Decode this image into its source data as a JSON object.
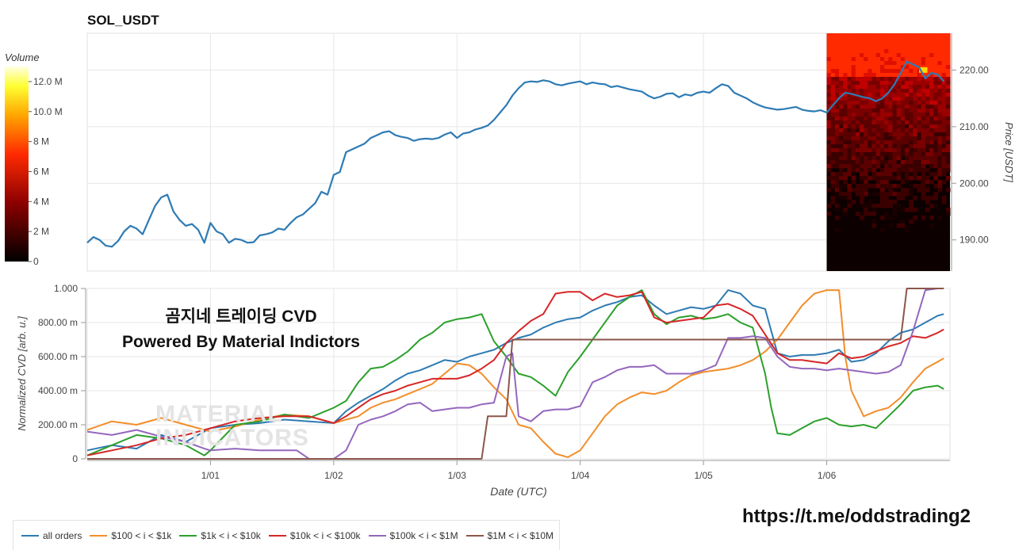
{
  "header": {
    "title": "SOL_USDT"
  },
  "overlay": {
    "line1": "곰지네 트레이딩 CVD",
    "line2": "Powered By Material Indictors",
    "watermark_line1": "MATERIAL",
    "watermark_line2": "INDICATORS"
  },
  "footer": {
    "link": "https://t.me/oddstrading2"
  },
  "colors": {
    "all_orders": "#2e7bb4",
    "s100_1k": "#f28e2b",
    "s1k_10k": "#2ca02c",
    "s10k_100k": "#d62728",
    "s100k_1m": "#9467bd",
    "s1m_10m": "#8c564b"
  },
  "chart_data": [
    {
      "type": "line",
      "title": "SOL_USDT",
      "ylabel": "Price [USDT]",
      "ylim": [
        184.5,
        226.5
      ],
      "xlim": [
        0,
        7
      ],
      "ytick_values": [
        190,
        200,
        210,
        220
      ],
      "ytick_labels": [
        "190.00",
        "200.00",
        "210.00",
        "220.00"
      ],
      "xtick_values": [
        1,
        2,
        3,
        4,
        5,
        6
      ],
      "grid": true,
      "heatmap_region": {
        "x_start": 6.0,
        "x_end": 7.0
      },
      "colorbar": {
        "label": "Volume",
        "ticks": [
          "0",
          "2 M",
          "4 M",
          "6 M",
          "8 M",
          "10.0 M",
          "12.0 M"
        ],
        "range": [
          0,
          13000000
        ]
      },
      "series": [
        {
          "key": "all_orders",
          "x": [
            0.0,
            0.05,
            0.1,
            0.15,
            0.2,
            0.25,
            0.3,
            0.35,
            0.4,
            0.45,
            0.5,
            0.55,
            0.6,
            0.65,
            0.7,
            0.75,
            0.8,
            0.85,
            0.9,
            0.95,
            1.0,
            1.05,
            1.1,
            1.15,
            1.2,
            1.25,
            1.3,
            1.35,
            1.4,
            1.45,
            1.5,
            1.55,
            1.6,
            1.65,
            1.7,
            1.75,
            1.8,
            1.85,
            1.9,
            1.95,
            2.0,
            2.05,
            2.1,
            2.15,
            2.2,
            2.25,
            2.3,
            2.35,
            2.4,
            2.45,
            2.5,
            2.55,
            2.6,
            2.65,
            2.7,
            2.75,
            2.8,
            2.85,
            2.9,
            2.95,
            3.0,
            3.05,
            3.1,
            3.15,
            3.2,
            3.25,
            3.3,
            3.35,
            3.4,
            3.45,
            3.5,
            3.55,
            3.6,
            3.65,
            3.7,
            3.75,
            3.8,
            3.85,
            3.9,
            3.95,
            4.0,
            4.05,
            4.1,
            4.15,
            4.2,
            4.25,
            4.3,
            4.35,
            4.4,
            4.45,
            4.5,
            4.55,
            4.6,
            4.65,
            4.7,
            4.75,
            4.8,
            4.85,
            4.9,
            4.95,
            5.0,
            5.05,
            5.1,
            5.15,
            5.2,
            5.25,
            5.3,
            5.35,
            5.4,
            5.45,
            5.5,
            5.55,
            5.6,
            5.65,
            5.7,
            5.75,
            5.8,
            5.85,
            5.9,
            5.95,
            6.0,
            6.05,
            6.1,
            6.15,
            6.2,
            6.25,
            6.3,
            6.35,
            6.4,
            6.45,
            6.5,
            6.55,
            6.6,
            6.65,
            6.7,
            6.75,
            6.8,
            6.85,
            6.9,
            6.95
          ],
          "y": [
            189.5,
            190.5,
            190.0,
            189.0,
            188.8,
            189.8,
            191.5,
            192.5,
            192.0,
            191.0,
            193.5,
            196.0,
            197.5,
            198.0,
            195.0,
            193.5,
            192.5,
            192.8,
            191.8,
            189.5,
            193.0,
            191.5,
            191.0,
            189.5,
            190.2,
            190.0,
            189.5,
            189.6,
            190.8,
            191.0,
            191.3,
            192.0,
            191.8,
            193.0,
            194.0,
            194.5,
            195.5,
            196.5,
            198.5,
            198.0,
            201.5,
            202.0,
            205.5,
            206.0,
            206.5,
            207.0,
            208.0,
            208.5,
            209.0,
            209.2,
            208.5,
            208.2,
            208.0,
            207.5,
            207.8,
            207.9,
            207.8,
            208.0,
            208.6,
            209.0,
            208.0,
            208.8,
            209.0,
            209.5,
            209.8,
            210.2,
            211.2,
            212.5,
            213.8,
            215.5,
            216.8,
            217.8,
            218.0,
            217.9,
            218.2,
            218.0,
            217.5,
            217.3,
            217.6,
            217.8,
            218.0,
            217.5,
            217.8,
            217.6,
            217.5,
            217.0,
            217.2,
            216.9,
            216.6,
            216.4,
            216.2,
            215.5,
            215.0,
            215.3,
            215.8,
            215.9,
            215.2,
            215.7,
            215.5,
            216.0,
            216.2,
            216.0,
            216.8,
            217.5,
            217.2,
            216.0,
            215.5,
            215.0,
            214.3,
            213.8,
            213.4,
            213.2,
            213.0,
            213.1,
            213.3,
            213.5,
            213.0,
            212.8,
            212.7,
            212.9,
            212.5,
            213.8,
            215.0,
            216.0,
            215.8,
            215.5,
            215.2,
            215.0,
            214.5,
            215.0,
            216.0,
            217.5,
            219.5,
            221.5,
            221.0,
            220.5,
            218.5,
            219.5,
            219.2,
            218.0
          ]
        }
      ]
    },
    {
      "type": "line",
      "xlabel": "Date (UTC)",
      "ylabel": "Normalized CVD [arb. u.]",
      "ylim": [
        0,
        1
      ],
      "xlim": [
        0,
        7
      ],
      "ytick_values": [
        0,
        0.2,
        0.4,
        0.6,
        0.8,
        1.0
      ],
      "ytick_labels": [
        "0",
        "200.00 m",
        "400.00 m",
        "600.00 m",
        "800.00 m",
        "1.000"
      ],
      "xtick_values": [
        1,
        2,
        3,
        4,
        5,
        6
      ],
      "xtick_labels": [
        "1/01",
        "1/02",
        "1/03",
        "1/04",
        "1/05",
        "1/06"
      ],
      "grid": true,
      "legend_position": "bottom",
      "series": [
        {
          "key": "all_orders",
          "name": "all orders",
          "x": [
            0.0,
            0.2,
            0.4,
            0.6,
            0.8,
            1.0,
            1.2,
            1.4,
            1.6,
            1.8,
            2.0,
            2.1,
            2.2,
            2.3,
            2.4,
            2.5,
            2.6,
            2.7,
            2.8,
            2.9,
            3.0,
            3.1,
            3.2,
            3.3,
            3.4,
            3.5,
            3.6,
            3.7,
            3.8,
            3.9,
            4.0,
            4.1,
            4.2,
            4.3,
            4.4,
            4.5,
            4.6,
            4.7,
            4.8,
            4.9,
            5.0,
            5.1,
            5.2,
            5.3,
            5.4,
            5.5,
            5.6,
            5.7,
            5.8,
            5.9,
            6.0,
            6.1,
            6.2,
            6.3,
            6.4,
            6.5,
            6.6,
            6.7,
            6.8,
            6.9,
            6.95
          ],
          "y": [
            0.05,
            0.08,
            0.06,
            0.14,
            0.1,
            0.18,
            0.2,
            0.21,
            0.23,
            0.22,
            0.21,
            0.28,
            0.33,
            0.37,
            0.41,
            0.46,
            0.5,
            0.52,
            0.55,
            0.58,
            0.57,
            0.6,
            0.62,
            0.64,
            0.68,
            0.71,
            0.73,
            0.77,
            0.8,
            0.82,
            0.83,
            0.87,
            0.9,
            0.92,
            0.95,
            0.96,
            0.9,
            0.85,
            0.87,
            0.89,
            0.88,
            0.9,
            0.99,
            0.97,
            0.9,
            0.88,
            0.62,
            0.6,
            0.61,
            0.61,
            0.62,
            0.64,
            0.57,
            0.58,
            0.62,
            0.69,
            0.74,
            0.76,
            0.8,
            0.84,
            0.85
          ]
        },
        {
          "key": "s100_1k",
          "name": "$100 < i < $1k",
          "x": [
            0.0,
            0.2,
            0.4,
            0.6,
            0.8,
            1.0,
            1.2,
            1.4,
            1.6,
            1.8,
            2.0,
            2.1,
            2.2,
            2.3,
            2.4,
            2.5,
            2.6,
            2.7,
            2.8,
            2.9,
            3.0,
            3.1,
            3.2,
            3.3,
            3.4,
            3.5,
            3.6,
            3.7,
            3.8,
            3.9,
            4.0,
            4.1,
            4.2,
            4.3,
            4.4,
            4.5,
            4.6,
            4.7,
            4.8,
            4.9,
            5.0,
            5.1,
            5.2,
            5.3,
            5.4,
            5.5,
            5.6,
            5.7,
            5.8,
            5.9,
            6.0,
            6.1,
            6.15,
            6.2,
            6.3,
            6.4,
            6.5,
            6.6,
            6.7,
            6.8,
            6.9,
            6.95
          ],
          "y": [
            0.17,
            0.22,
            0.2,
            0.24,
            0.2,
            0.16,
            0.19,
            0.23,
            0.26,
            0.25,
            0.21,
            0.23,
            0.25,
            0.3,
            0.33,
            0.35,
            0.38,
            0.41,
            0.44,
            0.5,
            0.56,
            0.55,
            0.5,
            0.42,
            0.35,
            0.2,
            0.18,
            0.1,
            0.03,
            0.01,
            0.05,
            0.15,
            0.25,
            0.32,
            0.36,
            0.39,
            0.38,
            0.4,
            0.45,
            0.49,
            0.51,
            0.52,
            0.53,
            0.55,
            0.58,
            0.63,
            0.7,
            0.8,
            0.9,
            0.97,
            0.99,
            0.99,
            0.6,
            0.4,
            0.25,
            0.28,
            0.3,
            0.36,
            0.45,
            0.53,
            0.57,
            0.59
          ]
        },
        {
          "key": "s1k_10k",
          "name": "$1k < i < $10k",
          "x": [
            0.0,
            0.2,
            0.4,
            0.6,
            0.8,
            0.95,
            1.0,
            1.2,
            1.4,
            1.6,
            1.8,
            2.0,
            2.1,
            2.2,
            2.3,
            2.4,
            2.5,
            2.6,
            2.7,
            2.8,
            2.9,
            3.0,
            3.1,
            3.2,
            3.3,
            3.4,
            3.5,
            3.6,
            3.7,
            3.8,
            3.9,
            4.0,
            4.1,
            4.2,
            4.3,
            4.4,
            4.5,
            4.6,
            4.7,
            4.8,
            4.9,
            5.0,
            5.1,
            5.2,
            5.3,
            5.4,
            5.5,
            5.55,
            5.6,
            5.7,
            5.8,
            5.9,
            6.0,
            6.1,
            6.2,
            6.3,
            6.4,
            6.5,
            6.6,
            6.7,
            6.8,
            6.9,
            6.95
          ],
          "y": [
            0.02,
            0.08,
            0.14,
            0.12,
            0.08,
            0.02,
            0.05,
            0.2,
            0.22,
            0.26,
            0.24,
            0.3,
            0.34,
            0.45,
            0.53,
            0.54,
            0.58,
            0.63,
            0.7,
            0.74,
            0.8,
            0.82,
            0.83,
            0.85,
            0.69,
            0.6,
            0.5,
            0.48,
            0.43,
            0.37,
            0.51,
            0.6,
            0.7,
            0.8,
            0.9,
            0.95,
            0.99,
            0.85,
            0.79,
            0.83,
            0.84,
            0.82,
            0.83,
            0.85,
            0.8,
            0.77,
            0.5,
            0.3,
            0.15,
            0.14,
            0.18,
            0.22,
            0.24,
            0.2,
            0.19,
            0.2,
            0.18,
            0.25,
            0.32,
            0.4,
            0.42,
            0.43,
            0.41
          ]
        },
        {
          "key": "s10k_100k",
          "name": "$10k < i < $100k",
          "x": [
            0.0,
            0.2,
            0.4,
            0.6,
            0.8,
            1.0,
            1.2,
            1.4,
            1.6,
            1.8,
            2.0,
            2.1,
            2.2,
            2.3,
            2.4,
            2.5,
            2.6,
            2.7,
            2.8,
            2.9,
            3.0,
            3.1,
            3.2,
            3.3,
            3.4,
            3.5,
            3.6,
            3.7,
            3.8,
            3.9,
            4.0,
            4.1,
            4.2,
            4.3,
            4.4,
            4.5,
            4.6,
            4.7,
            4.8,
            4.9,
            5.0,
            5.1,
            5.2,
            5.3,
            5.4,
            5.5,
            5.6,
            5.7,
            5.8,
            5.9,
            6.0,
            6.1,
            6.2,
            6.3,
            6.4,
            6.5,
            6.6,
            6.7,
            6.8,
            6.9,
            6.95
          ],
          "y": [
            0.02,
            0.05,
            0.08,
            0.12,
            0.14,
            0.18,
            0.22,
            0.24,
            0.25,
            0.25,
            0.21,
            0.25,
            0.3,
            0.35,
            0.38,
            0.4,
            0.43,
            0.45,
            0.47,
            0.47,
            0.47,
            0.49,
            0.53,
            0.58,
            0.68,
            0.75,
            0.81,
            0.85,
            0.97,
            0.98,
            0.98,
            0.93,
            0.97,
            0.95,
            0.96,
            0.98,
            0.83,
            0.8,
            0.81,
            0.82,
            0.83,
            0.9,
            0.91,
            0.88,
            0.84,
            0.73,
            0.62,
            0.58,
            0.58,
            0.57,
            0.56,
            0.62,
            0.59,
            0.6,
            0.63,
            0.66,
            0.68,
            0.72,
            0.71,
            0.74,
            0.76
          ]
        },
        {
          "key": "s100k_1m",
          "name": "$100k < i < $1M",
          "x": [
            0.0,
            0.2,
            0.4,
            0.6,
            0.8,
            0.95,
            1.0,
            1.2,
            1.4,
            1.6,
            1.7,
            1.8,
            2.0,
            2.1,
            2.2,
            2.3,
            2.4,
            2.5,
            2.6,
            2.7,
            2.8,
            2.9,
            3.0,
            3.1,
            3.2,
            3.3,
            3.4,
            3.45,
            3.5,
            3.6,
            3.7,
            3.8,
            3.9,
            4.0,
            4.1,
            4.2,
            4.3,
            4.4,
            4.5,
            4.6,
            4.7,
            4.8,
            4.9,
            5.0,
            5.1,
            5.2,
            5.3,
            5.4,
            5.5,
            5.6,
            5.7,
            5.8,
            5.9,
            6.0,
            6.1,
            6.2,
            6.3,
            6.4,
            6.5,
            6.6,
            6.7,
            6.8,
            6.9,
            6.95
          ],
          "y": [
            0.16,
            0.14,
            0.17,
            0.13,
            0.1,
            0.06,
            0.05,
            0.06,
            0.05,
            0.05,
            0.05,
            0.0,
            0.0,
            0.05,
            0.2,
            0.23,
            0.25,
            0.28,
            0.32,
            0.33,
            0.28,
            0.29,
            0.3,
            0.3,
            0.32,
            0.33,
            0.6,
            0.62,
            0.25,
            0.22,
            0.28,
            0.29,
            0.29,
            0.31,
            0.45,
            0.48,
            0.52,
            0.54,
            0.54,
            0.55,
            0.5,
            0.5,
            0.5,
            0.52,
            0.55,
            0.71,
            0.71,
            0.72,
            0.71,
            0.6,
            0.54,
            0.53,
            0.53,
            0.52,
            0.53,
            0.52,
            0.51,
            0.5,
            0.51,
            0.55,
            0.75,
            0.99,
            1.0,
            1.0
          ]
        },
        {
          "key": "s1m_10m",
          "name": "$1M < i < $10M",
          "x": [
            0.0,
            1.0,
            2.0,
            3.0,
            3.2,
            3.25,
            3.4,
            3.45,
            3.5,
            4.0,
            5.0,
            6.0,
            6.6,
            6.65,
            6.7,
            6.95
          ],
          "y": [
            0.0,
            0.0,
            0.0,
            0.0,
            0.0,
            0.25,
            0.25,
            0.7,
            0.7,
            0.7,
            0.7,
            0.7,
            0.7,
            1.0,
            1.0,
            1.0
          ]
        }
      ]
    }
  ]
}
